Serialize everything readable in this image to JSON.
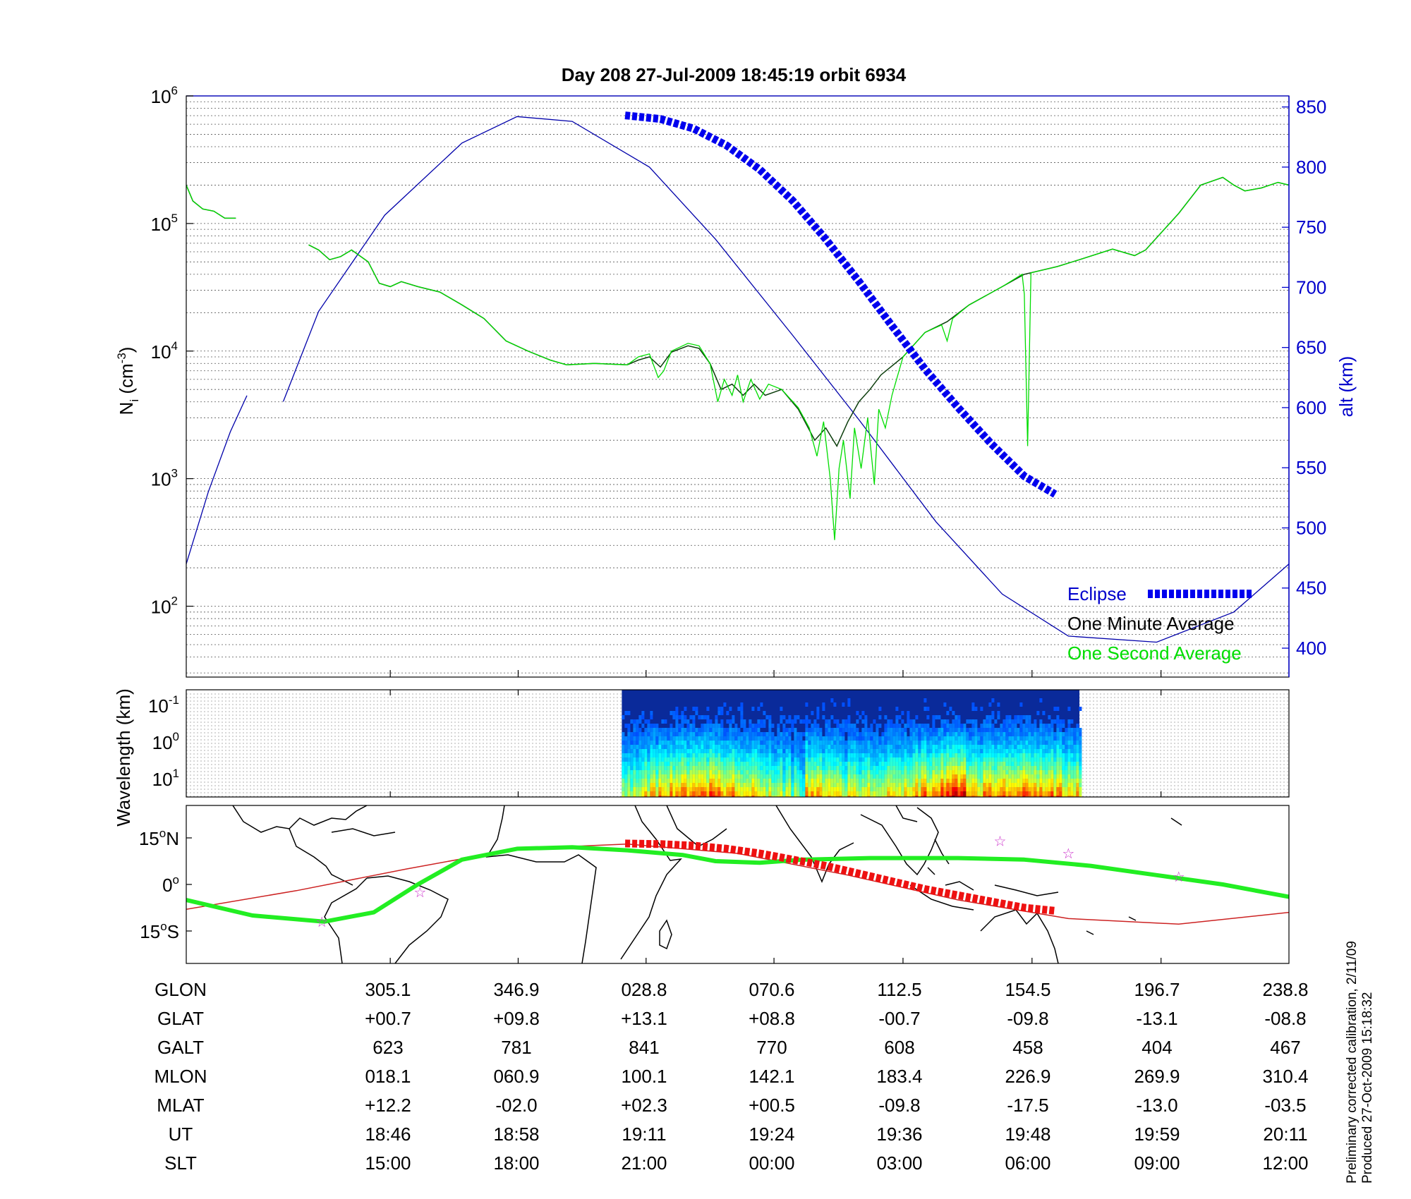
{
  "chart_data": [
    {
      "type": "line",
      "title": "Day 208  27-Jul-2009 18:45:19   orbit 6934",
      "ylabel_left": "N_i (cm^-3)",
      "ylabel_right": "alt (km)",
      "y_left_scale": "log",
      "y_left_ticks": [
        "10^2",
        "10^3",
        "10^4",
        "10^5",
        "10^6"
      ],
      "y_right_ticks": [
        "400",
        "450",
        "500",
        "550",
        "600",
        "650",
        "700",
        "750",
        "800",
        "850"
      ],
      "y_right_range": [
        375,
        875
      ],
      "grid": true,
      "legend": {
        "placement": "bottom-right",
        "entries": [
          {
            "label": "Eclipse",
            "color": "#0000ee"
          },
          {
            "label": "One Minute Average",
            "color": "#000000"
          },
          {
            "label": "One Second Average",
            "color": "#00dd00"
          }
        ]
      },
      "series": [
        {
          "name": "One Minute Average",
          "color": "#0b3d0b",
          "axis": "left",
          "points": [
            [
              0,
              200000.0
            ],
            [
              6,
              150000.0
            ],
            [
              15,
              130000.0
            ],
            [
              25,
              125000.0
            ],
            [
              35,
              110000.0
            ],
            [
              45,
              110000.0
            ],
            [
              null,
              null
            ],
            [
              111,
              68000.0
            ],
            [
              120,
              62000.0
            ],
            [
              130,
              52000.0
            ],
            [
              140,
              55000.0
            ],
            [
              150,
              62000.0
            ],
            [
              165,
              50000.0
            ],
            [
              175,
              34000.0
            ],
            [
              185,
              32000.0
            ],
            [
              195,
              35000.0
            ],
            [
              210,
              32000.0
            ],
            [
              230,
              29000.0
            ],
            [
              250,
              23000.0
            ],
            [
              270,
              18000.0
            ],
            [
              290,
              12000.0
            ],
            [
              310,
              10000.0
            ],
            [
              330,
              8500.0
            ],
            [
              345,
              7800.0
            ],
            [
              370,
              8000.0
            ],
            [
              400,
              7800.0
            ],
            [
              410,
              8500.0
            ],
            [
              420,
              9000.0
            ],
            [
              430,
              7500.0
            ],
            [
              440,
              9800.0
            ],
            [
              455,
              11000.0
            ],
            [
              465,
              10500.0
            ],
            [
              475,
              8000.0
            ],
            [
              485,
              5000.0
            ],
            [
              495,
              5500.0
            ],
            [
              505,
              4500.0
            ],
            [
              515,
              5500.0
            ],
            [
              525,
              4500.0
            ],
            [
              540,
              5000.0
            ],
            [
              555,
              3500.0
            ],
            [
              570,
              2000.0
            ],
            [
              580,
              2500.0
            ],
            [
              590,
              1800.0
            ],
            [
              600,
              2800.0
            ],
            [
              610,
              4000.0
            ],
            [
              620,
              5000.0
            ],
            [
              630,
              6500.0
            ],
            [
              650,
              9000.0
            ],
            [
              670,
              14000.0
            ],
            [
              690,
              17000.0
            ],
            [
              710,
              23000.0
            ],
            [
              740,
              32000.0
            ],
            [
              760,
              40000.0
            ],
            [
              790,
              46000.0
            ],
            [
              810,
              52000.0
            ],
            [
              840,
              63000.0
            ],
            [
              860,
              56000.0
            ],
            [
              870,
              62000.0
            ],
            [
              900,
              120000.0
            ],
            [
              920,
              200000.0
            ],
            [
              940,
              230000.0
            ],
            [
              950,
              200000.0
            ],
            [
              960,
              180000.0
            ],
            [
              975,
              190000.0
            ],
            [
              990,
              210000.0
            ],
            [
              1000,
              200000.0
            ]
          ]
        },
        {
          "name": "One Second Average",
          "color": "#00dd00",
          "axis": "left",
          "points": [
            [
              0,
              200000.0
            ],
            [
              6,
              150000.0
            ],
            [
              15,
              130000.0
            ],
            [
              25,
              125000.0
            ],
            [
              35,
              110000.0
            ],
            [
              45,
              110000.0
            ],
            [
              null,
              null
            ],
            [
              111,
              68000.0
            ],
            [
              120,
              62000.0
            ],
            [
              130,
              52000.0
            ],
            [
              140,
              55000.0
            ],
            [
              150,
              62000.0
            ],
            [
              165,
              50000.0
            ],
            [
              175,
              34000.0
            ],
            [
              185,
              32000.0
            ],
            [
              195,
              35000.0
            ],
            [
              210,
              32000.0
            ],
            [
              230,
              29000.0
            ],
            [
              250,
              23000.0
            ],
            [
              270,
              18000.0
            ],
            [
              290,
              12000.0
            ],
            [
              310,
              10000.0
            ],
            [
              330,
              8500.0
            ],
            [
              345,
              7800.0
            ],
            [
              370,
              8000.0
            ],
            [
              400,
              7800.0
            ],
            [
              410,
              9000.0
            ],
            [
              420,
              9500.0
            ],
            [
              428,
              6200.0
            ],
            [
              433,
              7000.0
            ],
            [
              440,
              10000.0
            ],
            [
              455,
              11500.0
            ],
            [
              465,
              11000.0
            ],
            [
              475,
              8000.0
            ],
            [
              482,
              4000.0
            ],
            [
              488,
              6000.0
            ],
            [
              495,
              4500.0
            ],
            [
              500,
              6500.0
            ],
            [
              505,
              4000.0
            ],
            [
              512,
              6000.0
            ],
            [
              520,
              4200.0
            ],
            [
              528,
              5500.0
            ],
            [
              540,
              5000.0
            ],
            [
              555,
              3600.0
            ],
            [
              565,
              2500.0
            ],
            [
              572,
              1500.0
            ],
            [
              578,
              2800.0
            ],
            [
              584,
              1000.0
            ],
            [
              588,
              330
            ],
            [
              592,
              1200.0
            ],
            [
              596,
              2000.0
            ],
            [
              602,
              700
            ],
            [
              606,
              2500.0
            ],
            [
              612,
              1200.0
            ],
            [
              618,
              3000.0
            ],
            [
              624,
              900
            ],
            [
              628,
              3500.0
            ],
            [
              634,
              2500.0
            ],
            [
              640,
              4500.0
            ],
            [
              650,
              9000.0
            ],
            [
              670,
              14000.0
            ],
            [
              685,
              16000.0
            ],
            [
              690,
              12000.0
            ],
            [
              695,
              18000.0
            ],
            [
              710,
              23000.0
            ],
            [
              740,
              32000.0
            ],
            [
              758,
              40000.0
            ],
            [
              760,
              28000.0
            ],
            [
              763,
              1800.0
            ],
            [
              766,
              41000.0
            ],
            [
              790,
              46000.0
            ],
            [
              810,
              52000.0
            ],
            [
              840,
              63000.0
            ],
            [
              860,
              56000.0
            ],
            [
              870,
              62000.0
            ],
            [
              900,
              120000.0
            ],
            [
              920,
              200000.0
            ],
            [
              940,
              230000.0
            ],
            [
              950,
              200000.0
            ],
            [
              960,
              180000.0
            ],
            [
              975,
              190000.0
            ],
            [
              990,
              210000.0
            ],
            [
              1000,
              200000.0
            ]
          ]
        },
        {
          "name": "Altitude",
          "color": "#0000aa",
          "axis": "right",
          "points": [
            [
              0,
              470
            ],
            [
              20,
              530
            ],
            [
              40,
              580
            ],
            [
              55,
              610
            ],
            [
              null,
              null
            ],
            [
              88,
              605
            ],
            [
              120,
              680
            ],
            [
              180,
              760
            ],
            [
              250,
              820
            ],
            [
              300,
              842
            ],
            [
              350,
              838
            ],
            [
              420,
              800
            ],
            [
              480,
              740
            ],
            [
              550,
              660
            ],
            [
              610,
              590
            ],
            [
              680,
              505
            ],
            [
              740,
              445
            ],
            [
              800,
              410
            ],
            [
              880,
              405
            ],
            [
              950,
              430
            ],
            [
              1000,
              470
            ]
          ]
        },
        {
          "name": "Eclipse",
          "color": "#0000ee",
          "axis": "right",
          "points": [
            [
              398,
              843
            ],
            [
              430,
              840
            ],
            [
              460,
              832
            ],
            [
              490,
              818
            ],
            [
              520,
              798
            ],
            [
              550,
              772
            ],
            [
              580,
              740
            ],
            [
              610,
              705
            ],
            [
              640,
              668
            ],
            [
              670,
              632
            ],
            [
              700,
              600
            ],
            [
              730,
              570
            ],
            [
              760,
              543
            ],
            [
              788,
              528
            ]
          ]
        }
      ]
    },
    {
      "type": "heatmap",
      "ylabel": "Wavelength (km)",
      "y_ticks": [
        "10^-1",
        "10^0",
        "10^1"
      ],
      "y_scale": "log",
      "colormap": "jet",
      "data_range_x": [
        395,
        810
      ]
    },
    {
      "type": "scatter",
      "subtype": "ground track map",
      "y_ticks": [
        "15°N",
        "0°",
        "15°S"
      ],
      "ylim": [
        -26,
        26
      ],
      "track_green": [
        [
          0,
          -5
        ],
        [
          60,
          -10
        ],
        [
          125,
          -12
        ],
        [
          170,
          -9
        ],
        [
          210,
          0
        ],
        [
          250,
          8
        ],
        [
          300,
          11.5
        ],
        [
          350,
          12
        ],
        [
          400,
          11
        ],
        [
          450,
          9.5
        ],
        [
          480,
          7.5
        ],
        [
          520,
          7
        ],
        [
          560,
          8
        ],
        [
          620,
          8.5
        ],
        [
          700,
          8.5
        ],
        [
          760,
          8
        ],
        [
          820,
          6
        ],
        [
          880,
          3
        ],
        [
          940,
          0
        ],
        [
          1000,
          -4
        ]
      ],
      "track_red": [
        [
          0,
          -8
        ],
        [
          100,
          -2
        ],
        [
          200,
          5
        ],
        [
          300,
          11.5
        ],
        [
          400,
          13
        ],
        [
          500,
          10
        ],
        [
          600,
          3
        ],
        [
          700,
          -5
        ],
        [
          800,
          -11
        ],
        [
          900,
          -12.8
        ],
        [
          1000,
          -9
        ]
      ],
      "eclipse_track": [
        [
          398,
          13.2
        ],
        [
          430,
          13
        ],
        [
          460,
          12.5
        ],
        [
          490,
          11.5
        ],
        [
          520,
          10
        ],
        [
          550,
          8
        ],
        [
          580,
          6
        ],
        [
          610,
          3.5
        ],
        [
          640,
          1
        ],
        [
          670,
          -1.5
        ],
        [
          700,
          -3.5
        ],
        [
          730,
          -5.5
        ],
        [
          760,
          -7.5
        ],
        [
          788,
          -8.5
        ]
      ],
      "stars": [
        [
          123,
          -12
        ],
        [
          212,
          -2.5
        ],
        [
          738,
          14
        ],
        [
          800,
          10
        ],
        [
          900,
          2.5
        ]
      ]
    }
  ],
  "table": {
    "rows": [
      {
        "label": "GLON",
        "values": [
          "305.1",
          "346.9",
          "028.8",
          "070.6",
          "112.5",
          "154.5",
          "196.7",
          "238.8"
        ]
      },
      {
        "label": "GLAT",
        "values": [
          "+00.7",
          "+09.8",
          "+13.1",
          "+08.8",
          "-00.7",
          "-09.8",
          "-13.1",
          "-08.8"
        ]
      },
      {
        "label": "GALT",
        "values": [
          "623",
          "781",
          "841",
          "770",
          "608",
          "458",
          "404",
          "467"
        ]
      },
      {
        "label": "MLON",
        "values": [
          "018.1",
          "060.9",
          "100.1",
          "142.1",
          "183.4",
          "226.9",
          "269.9",
          "310.4"
        ]
      },
      {
        "label": "MLAT",
        "values": [
          "+12.2",
          "-02.0",
          "+02.3",
          "+00.5",
          "-09.8",
          "-17.5",
          "-13.0",
          "-03.5"
        ]
      },
      {
        "label": "UT",
        "values": [
          "18:46",
          "18:58",
          "19:11",
          "19:24",
          "19:36",
          "19:48",
          "19:59",
          "20:11"
        ]
      },
      {
        "label": "SLT",
        "values": [
          "15:00",
          "18:00",
          "21:00",
          "00:00",
          "03:00",
          "06:00",
          "09:00",
          "12:00"
        ]
      }
    ]
  },
  "footnote": {
    "line1": "Preliminary corrected calibration, 2/11/09",
    "line2": "Produced 27-Oct-2009 15:18:32"
  }
}
